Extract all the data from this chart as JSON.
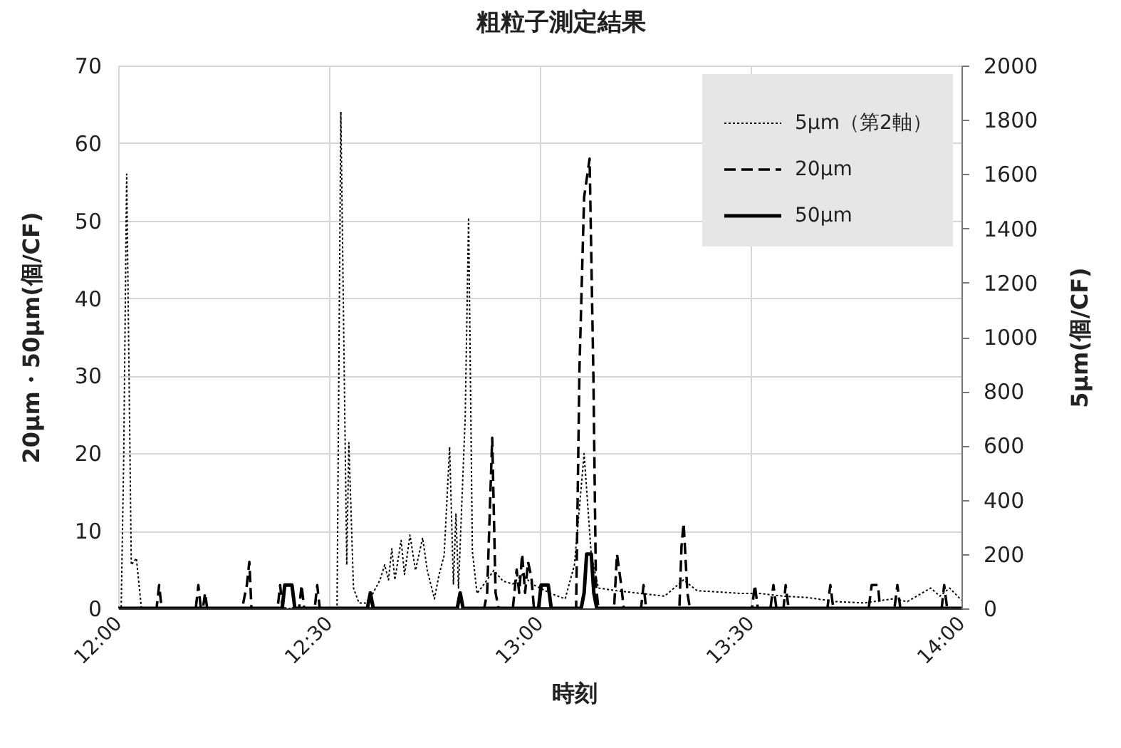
{
  "chart_data": {
    "type": "line",
    "title": "粗粒子測定結果",
    "xlabel": "時刻",
    "ylabel": "20μm・50μm(個/CF)",
    "y2label": "5μm(個/CF)",
    "xlim": [
      12,
      14
    ],
    "xticks": [
      {
        "value": 12,
        "label": "12:00"
      },
      {
        "value": 12.5,
        "label": "12:30"
      },
      {
        "value": 13,
        "label": "13:00"
      },
      {
        "value": 13.5,
        "label": "13:30"
      },
      {
        "value": 14,
        "label": "14:00"
      }
    ],
    "ylim": [
      0,
      70
    ],
    "yticks": [
      0,
      10,
      20,
      30,
      40,
      50,
      60,
      70
    ],
    "y2lim": [
      0,
      2000
    ],
    "y2ticks": [
      0,
      200,
      400,
      600,
      800,
      1000,
      1200,
      1400,
      1600,
      1800,
      2000
    ],
    "grid": true,
    "legend": "top right",
    "marker": "none",
    "series": [
      {
        "name": "5μm（第2軸）",
        "color": "#000000",
        "line_style": "dotted",
        "axis": "y2",
        "x": [
          12.0,
          12.007,
          12.013,
          12.02,
          12.031,
          12.043,
          12.055,
          12.519,
          12.528,
          12.542,
          12.547,
          12.558,
          12.571,
          12.587,
          12.604,
          12.621,
          12.632,
          12.641,
          12.649,
          12.656,
          12.671,
          12.679,
          12.692,
          12.705,
          12.722,
          12.733,
          12.75,
          12.761,
          12.773,
          12.786,
          12.795,
          12.801,
          12.807,
          12.823,
          12.831,
          12.84,
          12.851,
          12.868,
          12.891,
          12.913,
          12.936,
          12.958,
          12.981,
          13.026,
          13.06,
          13.082,
          13.105,
          13.122,
          13.139,
          13.182,
          13.24,
          13.296,
          13.341,
          13.373,
          13.431,
          13.476,
          13.521,
          13.578,
          13.634,
          13.702,
          13.769,
          13.837,
          13.872,
          13.927,
          13.949,
          13.972,
          14.0
        ],
        "values": [
          0,
          0,
          550,
          1600,
          160,
          185,
          0,
          0,
          1830,
          160,
          610,
          75,
          20,
          20,
          55,
          105,
          160,
          105,
          220,
          105,
          250,
          125,
          270,
          140,
          260,
          140,
          35,
          125,
          195,
          595,
          90,
          350,
          75,
          705,
          1440,
          210,
          55,
          90,
          140,
          100,
          90,
          125,
          90,
          55,
          35,
          160,
          570,
          195,
          75,
          65,
          55,
          45,
          105,
          65,
          60,
          55,
          55,
          45,
          40,
          25,
          20,
          35,
          25,
          75,
          45,
          75,
          30
        ]
      },
      {
        "name": "20μm",
        "color": "#000000",
        "line_style": "dashed",
        "x": [
          12.0,
          12.091,
          12.097,
          12.103,
          12.184,
          12.19,
          12.196,
          12.201,
          12.206,
          12.211,
          12.294,
          12.305,
          12.311,
          12.316,
          12.378,
          12.384,
          12.39,
          12.429,
          12.435,
          12.441,
          12.466,
          12.472,
          12.478,
          12.868,
          12.875,
          12.887,
          12.895,
          12.902,
          12.936,
          12.945,
          12.951,
          12.958,
          12.965,
          12.972,
          12.98,
          12.986,
          13.086,
          13.094,
          13.105,
          13.118,
          13.127,
          13.133,
          13.139,
          13.176,
          13.183,
          13.193,
          13.199,
          13.24,
          13.246,
          13.252,
          13.331,
          13.336,
          13.341,
          13.35,
          13.356,
          13.503,
          13.51,
          13.517,
          13.547,
          13.554,
          13.561,
          13.578,
          13.583,
          13.59,
          13.682,
          13.689,
          13.696,
          13.78,
          13.787,
          13.802,
          13.807,
          13.841,
          13.848,
          13.855,
          13.953,
          13.959,
          13.966,
          14.0
        ],
        "values": [
          0,
          0,
          3,
          0,
          0,
          3,
          0,
          0,
          2,
          0,
          0,
          3,
          6,
          0,
          0,
          3,
          0,
          0,
          3,
          0,
          0,
          3,
          0,
          0,
          2,
          22,
          2,
          0,
          0,
          5,
          2,
          7,
          2,
          6,
          4,
          0,
          0,
          31,
          53,
          58,
          30,
          3,
          0,
          0,
          7,
          3,
          0,
          0,
          3,
          0,
          0,
          8,
          11,
          2,
          0,
          0,
          3,
          0,
          0,
          3,
          0,
          0,
          3,
          0,
          0,
          3,
          0,
          0,
          3,
          3,
          0,
          0,
          3,
          0,
          0,
          3,
          0,
          0
        ]
      },
      {
        "name": "50μm",
        "color": "#000000",
        "line_style": "solid",
        "x": [
          12.0,
          12.389,
          12.395,
          12.412,
          12.419,
          12.591,
          12.598,
          12.605,
          12.804,
          12.811,
          12.818,
          12.997,
          13.003,
          13.02,
          13.027,
          13.098,
          13.105,
          13.111,
          13.122,
          13.128,
          13.135,
          14.0
        ],
        "values": [
          0,
          0,
          3,
          3,
          0,
          0,
          2,
          0,
          0,
          2,
          0,
          0,
          3,
          3,
          0,
          0,
          2,
          7,
          7,
          2,
          0,
          0
        ]
      }
    ]
  }
}
